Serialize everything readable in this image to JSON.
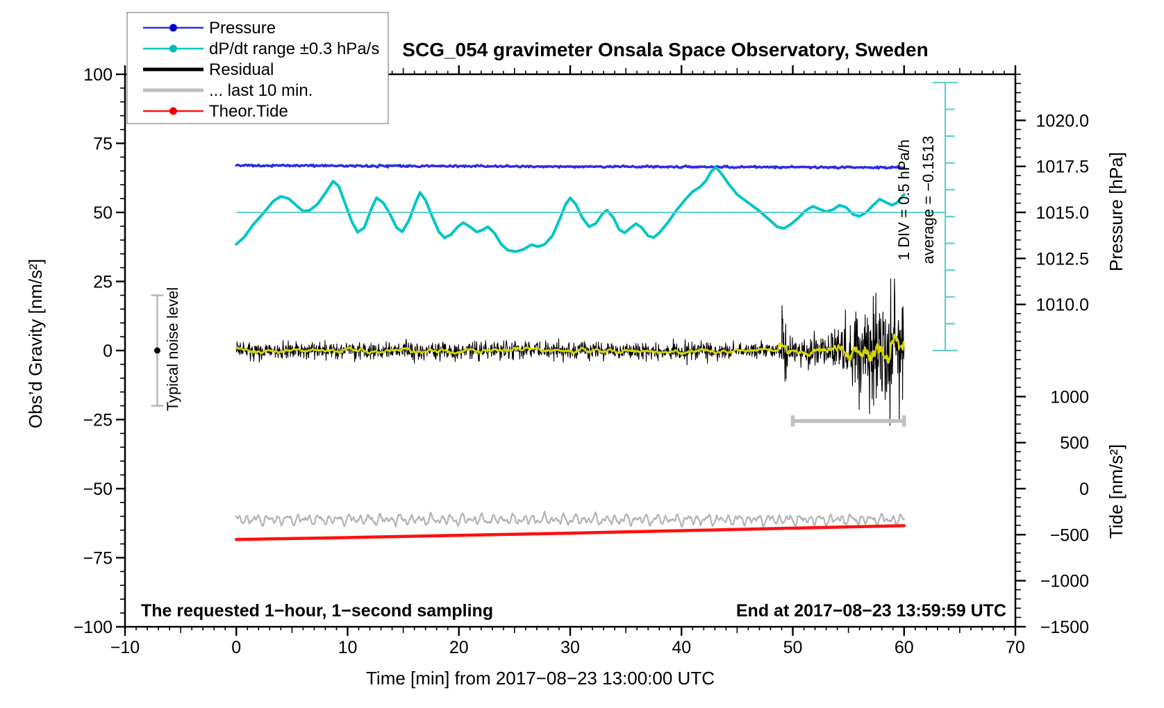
{
  "title": "SCG_054 gravimeter Onsala Space Observatory, Sweden",
  "annotations": {
    "bottom_left": "The requested 1−hour, 1−second sampling",
    "bottom_right": "End at 2017−08−23 13:59:59 UTC",
    "noise_level": "Typical noise level",
    "div_scale": "1 DIV = 0.5 hPa/h",
    "average": "average = −0.1513"
  },
  "legend": {
    "entries": [
      {
        "label": "Pressure",
        "color": "#2b2be8",
        "dot_color": "#0000cc",
        "dot": true,
        "width": 2.5
      },
      {
        "label": "dP/dt range ±0.3 hPa/s",
        "color": "#00c6c6",
        "dot_color": "#00bcbc",
        "dot": true,
        "width": 2.5
      },
      {
        "label": "Residual",
        "color": "#000000",
        "dot": false,
        "width": 5
      },
      {
        "label": "... last 10 min.",
        "color": "#bdbdbd",
        "dot": false,
        "width": 5
      },
      {
        "label": "Theor.Tide",
        "color": "#ff1010",
        "dot_color": "#ee0000",
        "dot": true,
        "width": 2.5
      }
    ]
  },
  "chart_data": {
    "type": "line",
    "title": "SCG_054 gravimeter Onsala Space Observatory, Sweden",
    "grid": false,
    "legend_position": "top-left",
    "axes": {
      "x": {
        "label": "Time [min] from 2017−08−23 13:00:00 UTC",
        "min": -10,
        "max": 70,
        "minor_step": 1,
        "medium_step": 5,
        "major": [
          {
            "v": -10,
            "label": "−10"
          },
          {
            "v": 0,
            "label": "0"
          },
          {
            "v": 10,
            "label": "10"
          },
          {
            "v": 20,
            "label": "20"
          },
          {
            "v": 30,
            "label": "30"
          },
          {
            "v": 40,
            "label": "40"
          },
          {
            "v": 50,
            "label": "50"
          },
          {
            "v": 60,
            "label": "60"
          },
          {
            "v": 70,
            "label": "70"
          }
        ]
      },
      "y_left": {
        "label": "Obs’d Gravity [nm/s²]",
        "min": -100,
        "max": 100,
        "minor_step": 5,
        "major": [
          {
            "v": 100,
            "label": "100"
          },
          {
            "v": 75,
            "label": "75"
          },
          {
            "v": 50,
            "label": "50"
          },
          {
            "v": 25,
            "label": "25"
          },
          {
            "v": 0,
            "label": "0"
          },
          {
            "v": -25,
            "label": "−25"
          },
          {
            "v": -50,
            "label": "−50"
          },
          {
            "v": -75,
            "label": "−75"
          },
          {
            "v": -100,
            "label": "−100"
          }
        ]
      },
      "pressure": {
        "label": "Pressure [hPa]",
        "anchor": {
          "hpa": 1015.0,
          "gravity": 50
        },
        "gravity_per_hpa": 6.664,
        "minor_step_hpa": 0.5,
        "major": [
          {
            "v": 1020.0,
            "label": "1020.0"
          },
          {
            "v": 1017.5,
            "label": "1017.5"
          },
          {
            "v": 1015.0,
            "label": "1015.0"
          },
          {
            "v": 1012.5,
            "label": "1012.5"
          },
          {
            "v": 1010.0,
            "label": "1010.0"
          }
        ]
      },
      "tide": {
        "label": "Tide [nm/s²]",
        "anchor": {
          "tide": 0,
          "gravity": -50
        },
        "gravity_per_unit": 0.03332,
        "minor_step": 100,
        "major": [
          {
            "v": 1000,
            "label": "1000"
          },
          {
            "v": 500,
            "label": "500"
          },
          {
            "v": 0,
            "label": "0"
          },
          {
            "v": -500,
            "label": "−500"
          },
          {
            "v": -1000,
            "label": "−1000"
          },
          {
            "v": -1500,
            "label": "−1500"
          }
        ]
      }
    },
    "series": [
      {
        "name": "pressure",
        "kind": "flat-noisy",
        "color": "#2b2be8",
        "stroke_width": 3.4,
        "t_start": 0,
        "t_end": 60,
        "base_gravity": 67.0,
        "slope_per_min": -0.013,
        "noise_amp": 0.18,
        "hpa_start": 1017.6,
        "hpa_end": 1017.45
      },
      {
        "name": "dpdt",
        "kind": "smooth-points",
        "color": "#00c6c6",
        "stroke_width": 4,
        "units_note": "plotted on gravity axis; 10 units = 1 DIV = 0.5 hPa/h; range clip ±0.3 hPa/s",
        "points": [
          [
            0,
            38.5
          ],
          [
            0.7,
            41
          ],
          [
            1.5,
            45.5
          ],
          [
            2.5,
            50
          ],
          [
            3.3,
            54
          ],
          [
            4,
            55.8
          ],
          [
            4.7,
            55
          ],
          [
            5.4,
            52.5
          ],
          [
            6,
            50.4
          ],
          [
            6.6,
            50.8
          ],
          [
            7.3,
            53
          ],
          [
            8,
            57
          ],
          [
            8.7,
            61.3
          ],
          [
            9.2,
            59.5
          ],
          [
            9.8,
            53
          ],
          [
            10.4,
            46.5
          ],
          [
            10.9,
            42.8
          ],
          [
            11.5,
            44.5
          ],
          [
            12.1,
            51
          ],
          [
            12.6,
            55.3
          ],
          [
            13.2,
            53.5
          ],
          [
            13.8,
            49.5
          ],
          [
            14.4,
            44.5
          ],
          [
            14.9,
            43
          ],
          [
            15.5,
            47
          ],
          [
            16.1,
            53.5
          ],
          [
            16.5,
            57.2
          ],
          [
            17,
            54.5
          ],
          [
            17.6,
            48.5
          ],
          [
            18.2,
            43
          ],
          [
            18.7,
            40.8
          ],
          [
            19.3,
            42
          ],
          [
            19.9,
            44.8
          ],
          [
            20.4,
            46.3
          ],
          [
            21,
            44.8
          ],
          [
            21.6,
            42.9
          ],
          [
            22.1,
            43.6
          ],
          [
            22.6,
            44.8
          ],
          [
            23.2,
            42.5
          ],
          [
            23.8,
            38.5
          ],
          [
            24.4,
            36.3
          ],
          [
            25.1,
            35.8
          ],
          [
            25.8,
            36.6
          ],
          [
            26.5,
            38.3
          ],
          [
            27.1,
            37.6
          ],
          [
            27.7,
            38.4
          ],
          [
            28.4,
            41.5
          ],
          [
            29,
            47
          ],
          [
            29.6,
            53
          ],
          [
            30,
            55.2
          ],
          [
            30.5,
            53
          ],
          [
            31.1,
            48
          ],
          [
            31.7,
            44.8
          ],
          [
            32.3,
            46
          ],
          [
            32.9,
            49.5
          ],
          [
            33.3,
            50.8
          ],
          [
            33.9,
            48
          ],
          [
            34.4,
            43.8
          ],
          [
            34.9,
            42.6
          ],
          [
            35.4,
            44.3
          ],
          [
            35.9,
            45.9
          ],
          [
            36.4,
            44.6
          ],
          [
            37,
            41.5
          ],
          [
            37.5,
            40.9
          ],
          [
            38.1,
            43
          ],
          [
            38.8,
            46.5
          ],
          [
            39.5,
            50.5
          ],
          [
            40.3,
            54.5
          ],
          [
            41,
            57.5
          ],
          [
            41.7,
            59.3
          ],
          [
            42.2,
            61.5
          ],
          [
            42.7,
            65
          ],
          [
            43.1,
            66.3
          ],
          [
            43.6,
            64
          ],
          [
            44.2,
            60.5
          ],
          [
            45,
            56.5
          ],
          [
            46,
            53.5
          ],
          [
            47,
            50.5
          ],
          [
            48,
            47
          ],
          [
            48.6,
            44.8
          ],
          [
            49.2,
            44.2
          ],
          [
            49.8,
            45.6
          ],
          [
            50.5,
            48
          ],
          [
            51.2,
            50.8
          ],
          [
            51.8,
            52.2
          ],
          [
            52.4,
            51.2
          ],
          [
            53,
            50.2
          ],
          [
            53.6,
            51
          ],
          [
            54.2,
            52.6
          ],
          [
            54.8,
            51.8
          ],
          [
            55.4,
            49.3
          ],
          [
            56,
            48.6
          ],
          [
            56.6,
            50
          ],
          [
            57.2,
            52.5
          ],
          [
            57.8,
            54.8
          ],
          [
            58.3,
            53.8
          ],
          [
            58.9,
            52.6
          ],
          [
            59.4,
            53.6
          ],
          [
            60,
            56.5
          ]
        ]
      },
      {
        "name": "last10min",
        "kind": "periodic",
        "color": "#b5b5b5",
        "stroke_width": 2.2,
        "t_start": 0,
        "t_end": 60,
        "base_gravity": -61.2,
        "jitter": 0.2,
        "components": [
          [
            1.0,
            0.92,
            1.3
          ],
          [
            0.8,
            0.57,
            4.0
          ],
          [
            0.55,
            1.45,
            0.7
          ],
          [
            0.3,
            0.33,
            2.2
          ]
        ]
      },
      {
        "name": "theor_tide",
        "kind": "smooth-points",
        "color": "#ff1010",
        "stroke_width": 4.5,
        "tide_units_start": -530,
        "tide_units_end": -400,
        "points": [
          [
            0,
            -68.4
          ],
          [
            10,
            -67.7
          ],
          [
            20,
            -66.9
          ],
          [
            30,
            -66.1
          ],
          [
            40,
            -65.2
          ],
          [
            50,
            -64.3
          ],
          [
            60,
            -63.4
          ]
        ]
      },
      {
        "name": "residual",
        "kind": "noise",
        "color": "#000000",
        "stroke_width": 1.1,
        "t_start": 0,
        "t_end": 60,
        "clip": [
          -29,
          26
        ],
        "tail_prob": 0.009,
        "tail_gain": 2.4,
        "envelope": [
          [
            0,
            1.5
          ],
          [
            48.9,
            1.5
          ],
          [
            49.0,
            5
          ],
          [
            49.15,
            11
          ],
          [
            49.35,
            5
          ],
          [
            49.8,
            2.4
          ],
          [
            51,
            2.6
          ],
          [
            52.5,
            2.9
          ],
          [
            53.5,
            3.8
          ],
          [
            54.5,
            5
          ],
          [
            55.5,
            6.5
          ],
          [
            56.5,
            8.5
          ],
          [
            57.5,
            10.5
          ],
          [
            58.2,
            9.5
          ],
          [
            59,
            10
          ],
          [
            60,
            9.5
          ]
        ]
      },
      {
        "name": "residual_smoothed",
        "kind": "smoothed-of-noise",
        "source": "residual",
        "color": "#d6d600",
        "stroke_width": 2.6,
        "window": 10,
        "gain": 1.4
      }
    ],
    "markers": {
      "dpdt_mean_line": {
        "gravity": 50,
        "t_start": 0,
        "t_end": 63.7,
        "color": "#63cfcf",
        "average_hpa_per_h": -0.1513
      },
      "noise_errorbar": {
        "t": -7.1,
        "gravity_center": 0,
        "half_range": 20,
        "bar_color": "#b5b5b5",
        "dot_color": "#000000"
      },
      "last10_bracket": {
        "t_start": 50,
        "t_end": 60,
        "gravity": -25.5,
        "color": "#c0c0c0"
      },
      "div_scale_bar": {
        "t": 63.7,
        "gravity_top": 97,
        "gravity_bottom": 0,
        "divisions": 10,
        "color": "#63cfcf"
      }
    }
  }
}
